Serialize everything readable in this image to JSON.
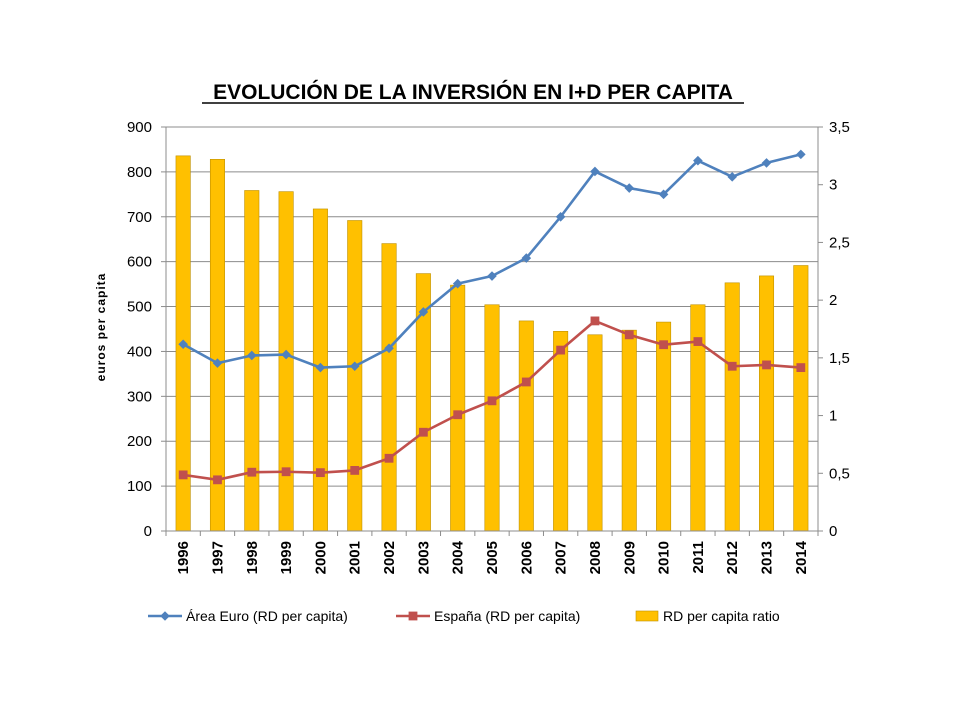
{
  "chart_data": {
    "type": "bar+line",
    "title": "EVOLUCIÓN DE LA INVERSIÓN EN I+D PER CAPITA",
    "ylabel": "euros per capita",
    "ylabel_right": "",
    "xlabel": "",
    "categories": [
      "1996",
      "1997",
      "1998",
      "1999",
      "2000",
      "2001",
      "2002",
      "2003",
      "2004",
      "2005",
      "2006",
      "2007",
      "2008",
      "2009",
      "2010",
      "2011",
      "2012",
      "2013",
      "2014"
    ],
    "ylim": [
      0,
      900
    ],
    "ylim_right": [
      0,
      3.5
    ],
    "yticks": [
      0,
      100,
      200,
      300,
      400,
      500,
      600,
      700,
      800,
      900
    ],
    "yticks_right": [
      0,
      0.5,
      1,
      1.5,
      2,
      2.5,
      3,
      3.5
    ],
    "yticks_right_labels": [
      "0",
      "0,5",
      "1",
      "1,5",
      "2",
      "2,5",
      "3",
      "3,5"
    ],
    "grid": "horizontal",
    "legend_position": "bottom",
    "series": [
      {
        "name": "Área Euro (RD per capita)",
        "type": "line",
        "axis": "left",
        "marker": "diamond",
        "color": "#4F81BD",
        "values": [
          416,
          374,
          391,
          393,
          364,
          367,
          407,
          488,
          551,
          568,
          608,
          700,
          801,
          764,
          750,
          825,
          789,
          820,
          839
        ]
      },
      {
        "name": "España (RD per capita)",
        "type": "line",
        "axis": "left",
        "marker": "square",
        "color": "#C0504D",
        "values": [
          125,
          114,
          131,
          132,
          130,
          135,
          162,
          220,
          259,
          290,
          332,
          403,
          468,
          437,
          415,
          422,
          367,
          370,
          364
        ]
      },
      {
        "name": "RD per capita ratio",
        "type": "bar",
        "axis": "right",
        "color": "#FFC000",
        "edge": "#BF9000",
        "values": [
          3.25,
          3.22,
          2.95,
          2.94,
          2.79,
          2.69,
          2.49,
          2.23,
          2.13,
          1.96,
          1.82,
          1.73,
          1.7,
          1.74,
          1.81,
          1.96,
          2.15,
          2.21,
          2.3
        ]
      }
    ]
  }
}
